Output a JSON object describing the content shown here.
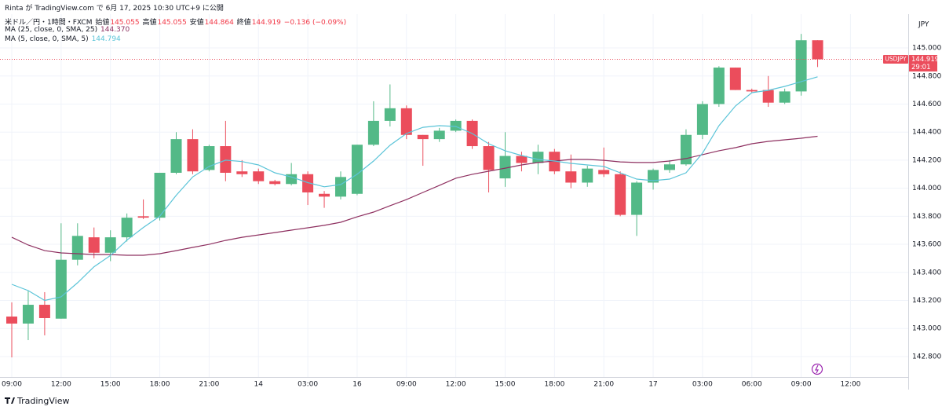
{
  "header": {
    "attribution": "Rinta が TradingView.com で 6月 17, 2025 10:30 UTC+9 に公開",
    "instrument": "米ドル／円・1時間・FXCM",
    "open_label": "始値",
    "high_label": "高値",
    "low_label": "安値",
    "close_label": "終値",
    "change": "−0.136 (−0.09%)"
  },
  "footer": {
    "logo": "TradingView"
  },
  "chart_data": {
    "type": "candlestick",
    "currency": "JPY",
    "symbol": "USDJPY",
    "countdown": "29:01",
    "up_color": "#53b987",
    "down_color": "#eb4d5c",
    "grid": true,
    "categories": [
      "09:00",
      null,
      null,
      "12:00",
      null,
      null,
      "15:00",
      null,
      null,
      "18:00",
      null,
      null,
      "21:00",
      null,
      null,
      "14",
      null,
      null,
      "03:00",
      null,
      null,
      "16",
      null,
      null,
      "09:00",
      null,
      null,
      "12:00",
      null,
      null,
      "15:00",
      null,
      null,
      "18:00",
      null,
      null,
      "21:00",
      null,
      null,
      "17",
      null,
      null,
      "03:00",
      null,
      null,
      "06:00",
      null,
      null,
      "09:00",
      null,
      null,
      "12:00"
    ],
    "open": [
      143.085,
      143.035,
      143.169,
      143.07,
      143.49,
      143.65,
      143.54,
      143.65,
      143.8,
      143.79,
      144.11,
      144.35,
      144.13,
      144.3,
      144.12,
      144.12,
      144.05,
      144.03,
      144.1,
      143.96,
      143.94,
      143.96,
      144.31,
      144.48,
      144.57,
      144.38,
      144.35,
      144.41,
      144.48,
      144.3,
      144.07,
      144.23,
      144.18,
      144.26,
      144.12,
      144.04,
      144.13,
      144.1,
      143.81,
      144.04,
      144.13,
      144.17,
      144.38,
      144.6,
      144.86,
      144.7,
      144.7,
      144.61,
      144.69,
      145.055,
      null,
      null
    ],
    "high": [
      143.186,
      143.27,
      143.259,
      143.75,
      143.75,
      143.72,
      143.7,
      143.82,
      143.92,
      144.11,
      144.4,
      144.42,
      144.31,
      144.48,
      144.2,
      144.14,
      144.06,
      144.18,
      144.12,
      143.98,
      144.12,
      144.31,
      144.62,
      144.74,
      144.59,
      144.38,
      144.43,
      144.49,
      144.49,
      144.33,
      144.4,
      144.26,
      144.31,
      144.28,
      144.24,
      144.16,
      144.29,
      144.12,
      144.05,
      144.14,
      144.2,
      144.42,
      144.62,
      144.87,
      144.86,
      144.71,
      144.8,
      144.71,
      145.1,
      145.055,
      null,
      null
    ],
    "low": [
      142.794,
      142.917,
      142.951,
      143.07,
      143.45,
      143.5,
      143.48,
      143.62,
      143.78,
      143.77,
      144.1,
      144.1,
      144.12,
      144.05,
      144.08,
      144.03,
      144.02,
      144.02,
      143.88,
      143.86,
      143.92,
      143.95,
      144.3,
      144.44,
      144.35,
      144.16,
      144.33,
      144.4,
      144.28,
      143.97,
      144.01,
      144.12,
      144.1,
      144.1,
      144.0,
      144.01,
      144.08,
      143.8,
      143.66,
      143.99,
      144.11,
      144.16,
      144.35,
      144.58,
      144.7,
      144.68,
      144.58,
      144.6,
      144.66,
      144.864,
      null,
      null
    ],
    "close": [
      143.035,
      143.169,
      143.074,
      143.49,
      143.66,
      143.54,
      143.65,
      143.79,
      143.79,
      144.11,
      144.35,
      144.12,
      144.3,
      144.11,
      144.1,
      144.05,
      144.03,
      144.1,
      143.97,
      143.94,
      144.08,
      144.31,
      144.48,
      144.57,
      144.38,
      144.35,
      144.41,
      144.48,
      144.3,
      144.13,
      144.23,
      144.18,
      144.26,
      144.12,
      144.04,
      144.14,
      144.1,
      143.81,
      144.04,
      144.13,
      144.17,
      144.38,
      144.6,
      144.86,
      144.7,
      144.69,
      144.61,
      144.69,
      145.055,
      144.919,
      null,
      null
    ],
    "series": [
      {
        "name": "MA (25, close, 0, SMA, 25)",
        "legend_value": "144.370",
        "color": "#8e3060",
        "values": [
          143.65,
          143.595,
          143.555,
          143.539,
          143.533,
          143.527,
          143.527,
          143.522,
          143.522,
          143.533,
          143.555,
          143.578,
          143.6,
          143.628,
          143.65,
          143.667,
          143.684,
          143.701,
          143.718,
          143.735,
          143.757,
          143.796,
          143.83,
          143.875,
          143.919,
          143.97,
          144.02,
          144.071,
          144.099,
          144.121,
          144.143,
          144.166,
          144.183,
          144.194,
          144.205,
          144.205,
          144.199,
          144.188,
          144.183,
          144.183,
          144.194,
          144.211,
          144.239,
          144.267,
          144.289,
          144.317,
          144.334,
          144.345,
          144.356,
          144.37,
          null,
          null
        ]
      },
      {
        "name": "MA (5, close, 0, SMA, 5)",
        "legend_value": "144.794",
        "color": "#5bc4d8",
        "values": [
          143.315,
          143.27,
          143.2,
          143.225,
          143.326,
          143.44,
          143.52,
          143.63,
          143.72,
          143.8,
          143.95,
          144.08,
          144.155,
          144.2,
          144.19,
          144.166,
          144.11,
          144.08,
          144.04,
          144.01,
          144.026,
          144.099,
          144.194,
          144.306,
          144.39,
          144.434,
          144.446,
          144.44,
          144.39,
          144.317,
          144.267,
          144.233,
          144.205,
          144.194,
          144.177,
          144.166,
          144.155,
          144.11,
          144.065,
          144.054,
          144.065,
          144.11,
          144.25,
          144.446,
          144.586,
          144.681,
          144.698,
          144.726,
          144.76,
          144.794,
          null,
          null
        ]
      }
    ],
    "ylim": [
      142.654,
      145.241
    ],
    "yticks": [
      {
        "value": 142.8,
        "label": "142.800"
      },
      {
        "value": 143.0,
        "label": "143.000"
      },
      {
        "value": 143.2,
        "label": "143.200"
      },
      {
        "value": 143.4,
        "label": "143.400"
      },
      {
        "value": 143.6,
        "label": "143.600"
      },
      {
        "value": 143.8,
        "label": "143.800"
      },
      {
        "value": 144.0,
        "label": "144.000"
      },
      {
        "value": 144.2,
        "label": "144.200"
      },
      {
        "value": 144.4,
        "label": "144.400"
      },
      {
        "value": 144.6,
        "label": "144.600"
      },
      {
        "value": 144.8,
        "label": "144.800"
      },
      {
        "value": 145.0,
        "label": "145.000"
      }
    ]
  }
}
